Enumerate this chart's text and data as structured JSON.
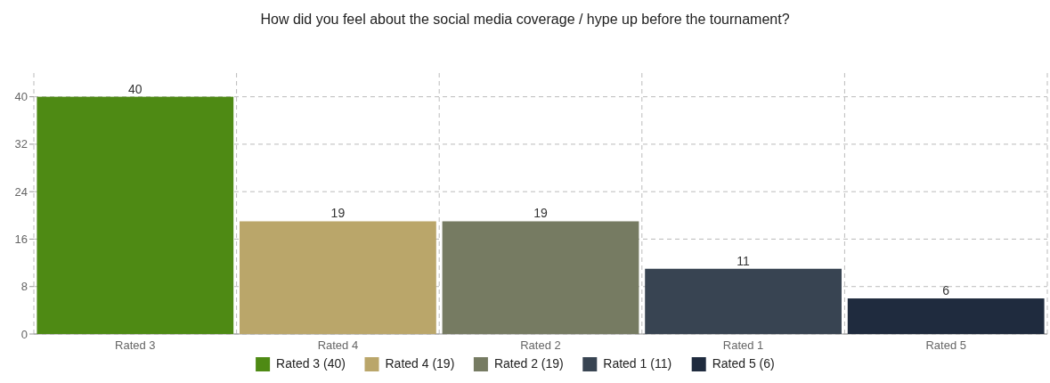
{
  "chart_data": {
    "type": "bar",
    "title": "How did you feel about the social media coverage / hype up before the tournament?",
    "categories": [
      "Rated 3",
      "Rated 4",
      "Rated 2",
      "Rated 1",
      "Rated 5"
    ],
    "series": [
      {
        "name": "Rated 3 (40)",
        "color": "#4e8a14",
        "values": [
          40,
          null,
          null,
          null,
          null
        ]
      },
      {
        "name": "Rated 4 (19)",
        "color": "#baa66a",
        "values": [
          null,
          19,
          null,
          null,
          null
        ]
      },
      {
        "name": "Rated 2 (19)",
        "color": "#767b62",
        "values": [
          null,
          null,
          19,
          null,
          null
        ]
      },
      {
        "name": "Rated 1 (11)",
        "color": "#384452",
        "values": [
          null,
          null,
          null,
          11,
          null
        ]
      },
      {
        "name": "Rated 5 (6)",
        "color": "#1f2b3e",
        "values": [
          null,
          null,
          null,
          null,
          6
        ]
      }
    ],
    "stacked": true,
    "ylim": [
      0,
      44
    ],
    "yticks": [
      0,
      8,
      16,
      24,
      32,
      40
    ],
    "grid": true,
    "data_labels": true,
    "legend": "bottom"
  }
}
